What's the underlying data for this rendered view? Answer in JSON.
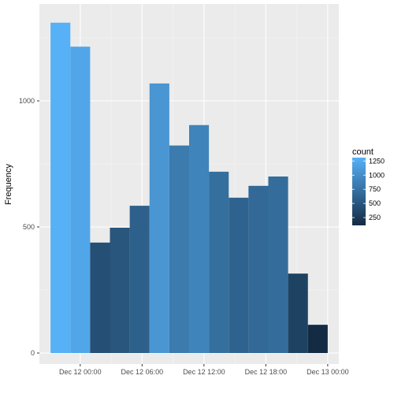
{
  "chart_data": {
    "type": "bar",
    "title": "",
    "xlabel": "",
    "ylabel": "Frequency",
    "x_ticks": [
      "Dec 12 00:00",
      "Dec 12 06:00",
      "Dec 12 12:00",
      "Dec 12 18:00",
      "Dec 13 00:00"
    ],
    "x_tick_hours": [
      0,
      6,
      12,
      18,
      24
    ],
    "y_ticks": [
      0,
      500,
      1000
    ],
    "ylim": [
      0,
      1330
    ],
    "bins": [
      {
        "start_hour": -2.88,
        "end_hour": -0.96,
        "count": 1310
      },
      {
        "start_hour": -0.96,
        "end_hour": 0.96,
        "count": 1215
      },
      {
        "start_hour": 0.96,
        "end_hour": 2.88,
        "count": 438
      },
      {
        "start_hour": 2.88,
        "end_hour": 4.8,
        "count": 497
      },
      {
        "start_hour": 4.8,
        "end_hour": 6.72,
        "count": 584
      },
      {
        "start_hour": 6.72,
        "end_hour": 8.64,
        "count": 1069
      },
      {
        "start_hour": 8.64,
        "end_hour": 10.56,
        "count": 823
      },
      {
        "start_hour": 10.56,
        "end_hour": 12.48,
        "count": 904
      },
      {
        "start_hour": 12.48,
        "end_hour": 14.4,
        "count": 719
      },
      {
        "start_hour": 14.4,
        "end_hour": 16.32,
        "count": 616
      },
      {
        "start_hour": 16.32,
        "end_hour": 18.24,
        "count": 663
      },
      {
        "start_hour": 18.24,
        "end_hour": 20.16,
        "count": 700
      },
      {
        "start_hour": 20.16,
        "end_hour": 22.08,
        "count": 315
      },
      {
        "start_hour": 22.08,
        "end_hour": 24.0,
        "count": 112
      }
    ],
    "legend": {
      "title": "count",
      "position": "right",
      "breaks": [
        250,
        500,
        750,
        1000,
        1250
      ],
      "low_color": "#132B43",
      "high_color": "#56B1F7"
    },
    "grid": true
  }
}
